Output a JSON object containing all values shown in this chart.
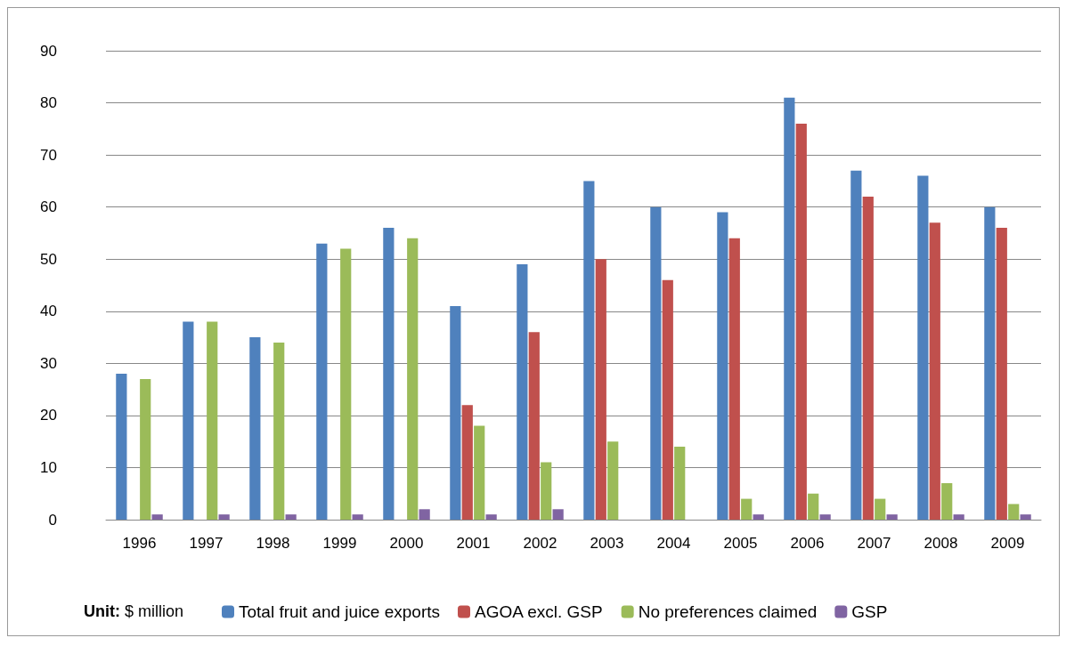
{
  "chart_data": {
    "type": "bar",
    "categories": [
      "1996",
      "1997",
      "1998",
      "1999",
      "2000",
      "2001",
      "2002",
      "2003",
      "2004",
      "2005",
      "2006",
      "2007",
      "2008",
      "2009"
    ],
    "series": [
      {
        "name": "Total fruit and juice exports",
        "color": "#4f81bd",
        "values": [
          28,
          38,
          35,
          53,
          56,
          41,
          49,
          65,
          60,
          59,
          81,
          67,
          66,
          60
        ]
      },
      {
        "name": "AGOA excl. GSP",
        "color": "#c0504d",
        "values": [
          null,
          null,
          null,
          null,
          null,
          22,
          36,
          50,
          46,
          54,
          76,
          62,
          57,
          56
        ]
      },
      {
        "name": "No preferences claimed",
        "color": "#9bbb59",
        "values": [
          27,
          38,
          34,
          52,
          54,
          18,
          11,
          15,
          14,
          4,
          5,
          4,
          7,
          3
        ]
      },
      {
        "name": "GSP",
        "color": "#8064a2",
        "values": [
          1,
          1,
          1,
          1,
          2,
          1,
          2,
          null,
          null,
          1,
          1,
          1,
          1,
          1
        ]
      }
    ],
    "ylim": [
      0,
      90
    ],
    "yticks": [
      0,
      10,
      20,
      30,
      40,
      50,
      60,
      70,
      80,
      90
    ],
    "grid": "y",
    "legend": "bottom",
    "annotations": [
      "Unit: $ million"
    ]
  }
}
